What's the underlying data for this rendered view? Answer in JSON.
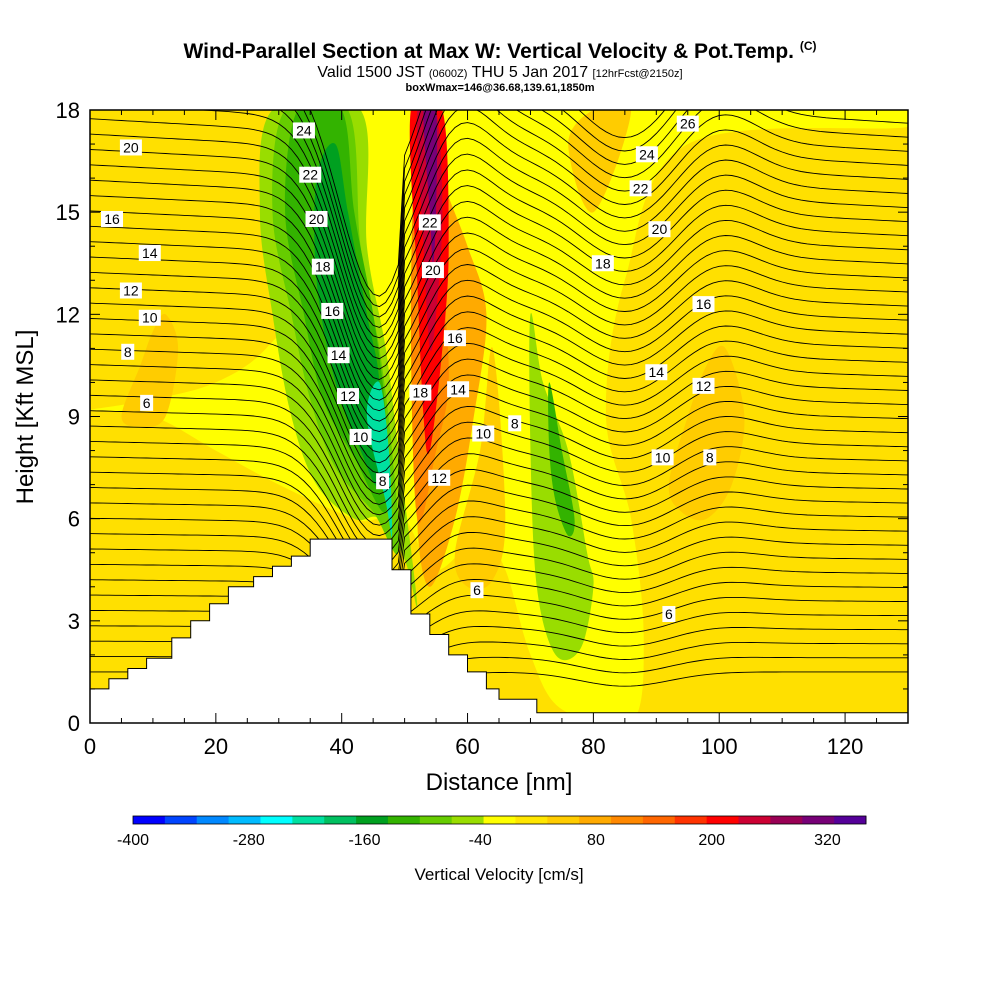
{
  "chart_data": {
    "type": "cross-section contour",
    "title": "Wind-Parallel Section at Max W: Vertical Velocity & Pot.Temp.",
    "title_mark": "(C)",
    "subtitle_prefix": "Valid 1500 JST",
    "subtitle_utc": "(0600Z)",
    "subtitle_date": "THU 5 Jan 2017",
    "subtitle_fcst": "[12hrFcst@2150z]",
    "subtitle2": "boxWmax=146@36.68,139.61,1850m",
    "xlabel": "Distance [nm]",
    "ylabel": "Height [Kft MSL]",
    "xlim": [
      0,
      130
    ],
    "ylim": [
      0,
      18
    ],
    "xticks": [
      0,
      20,
      40,
      60,
      80,
      100,
      120
    ],
    "yticks": [
      0,
      3,
      6,
      9,
      12,
      15,
      18
    ],
    "colorbar": {
      "title": "Vertical Velocity [cm/s]",
      "range": [
        -400,
        360
      ],
      "step": 40,
      "tick_values": [
        -400,
        -280,
        -160,
        -40,
        80,
        200,
        320
      ],
      "tick_labels": [
        "-400",
        "-280",
        "-160",
        "-40",
        "80",
        "200",
        "320"
      ],
      "colors": [
        "#0000ff",
        "#0044ff",
        "#0088ff",
        "#00bbff",
        "#00ffff",
        "#00e0a0",
        "#00c060",
        "#00a020",
        "#33b300",
        "#66cc00",
        "#99dd00",
        "#ffff00",
        "#ffe600",
        "#ffcc00",
        "#ffaa00",
        "#ff8800",
        "#ff6600",
        "#ff3300",
        "#ff0000",
        "#cc0033",
        "#990055",
        "#770077",
        "#550099"
      ]
    },
    "velocity_field": {
      "background": "#ffe000",
      "regions": [
        {
          "value": -20,
          "color": "#ffff00",
          "points": [
            [
              0,
              9.2
            ],
            [
              10,
              9.5
            ],
            [
              20,
              10
            ],
            [
              28,
              11
            ],
            [
              35,
              13
            ],
            [
              40,
              18
            ],
            [
              130,
              18
            ],
            [
              130,
              17.5
            ],
            [
              95,
              17
            ],
            [
              85,
              13
            ],
            [
              82,
              9
            ],
            [
              86,
              6
            ],
            [
              88,
              2.5
            ],
            [
              86,
              0
            ],
            [
              75,
              0.4
            ],
            [
              70,
              2
            ],
            [
              66,
              4.5
            ],
            [
              62,
              5.5
            ],
            [
              55,
              4.5
            ],
            [
              50,
              6
            ],
            [
              46,
              6
            ],
            [
              42,
              6
            ],
            [
              30,
              7
            ],
            [
              20,
              8
            ],
            [
              10,
              9
            ],
            [
              0,
              9.2
            ]
          ]
        },
        {
          "value": 60,
          "color": "#ffcc00",
          "points": [
            [
              5,
              9
            ],
            [
              8,
              10.5
            ],
            [
              10,
              11.5
            ],
            [
              12,
              12
            ],
            [
              14,
              11
            ],
            [
              12,
              9
            ],
            [
              8,
              8.7
            ]
          ]
        },
        {
          "value": 60,
          "color": "#ffcc00",
          "points": [
            [
              92,
              7
            ],
            [
              95,
              9
            ],
            [
              98,
              10.5
            ],
            [
              101,
              11
            ],
            [
              104,
              9
            ],
            [
              102,
              7
            ],
            [
              98,
              6
            ],
            [
              94,
              6.2
            ]
          ]
        },
        {
          "value": 60,
          "color": "#ffcc00",
          "points": [
            [
              76,
              17
            ],
            [
              80,
              15
            ],
            [
              86,
              18
            ],
            [
              80,
              18
            ]
          ]
        },
        {
          "value": 60,
          "color": "#ffcc00",
          "points": [
            [
              58,
              5
            ],
            [
              62,
              8
            ],
            [
              64,
              11
            ],
            [
              66,
              6
            ],
            [
              64,
              4.2
            ],
            [
              60,
              4
            ]
          ]
        },
        {
          "value": -60,
          "color": "#99dd00",
          "points": [
            [
              29,
              18
            ],
            [
              27,
              15
            ],
            [
              29,
              12
            ],
            [
              32,
              9
            ],
            [
              36,
              7
            ],
            [
              42,
              6
            ],
            [
              46,
              6
            ],
            [
              50,
              4.8
            ],
            [
              52,
              3.5
            ],
            [
              49,
              8
            ],
            [
              47,
              11
            ],
            [
              44,
              14
            ],
            [
              43,
              18
            ]
          ]
        },
        {
          "value": -100,
          "color": "#66cc00",
          "points": [
            [
              31,
              18
            ],
            [
              29,
              15
            ],
            [
              32,
              12
            ],
            [
              35,
              9.5
            ],
            [
              39,
              7.5
            ],
            [
              45,
              6.2
            ],
            [
              49,
              5
            ],
            [
              48,
              8
            ],
            [
              46,
              11
            ],
            [
              43,
              14
            ],
            [
              41,
              18
            ]
          ]
        },
        {
          "value": -140,
          "color": "#33b300",
          "points": [
            [
              33,
              18
            ],
            [
              31,
              15
            ],
            [
              34,
              12
            ],
            [
              37,
              9.5
            ],
            [
              42,
              7.8
            ],
            [
              47,
              6.2
            ],
            [
              47,
              9
            ],
            [
              45,
              12
            ],
            [
              42,
              15
            ],
            [
              40,
              18
            ]
          ]
        },
        {
          "value": -180,
          "color": "#00a020",
          "points": [
            [
              36,
              16
            ],
            [
              36,
              13
            ],
            [
              39,
              10
            ],
            [
              43,
              8
            ],
            [
              46,
              7
            ],
            [
              46,
              10
            ],
            [
              44,
              12
            ],
            [
              41,
              15
            ],
            [
              39,
              17
            ]
          ]
        },
        {
          "value": -260,
          "color": "#00e0a0",
          "points": [
            [
              44,
              9
            ],
            [
              47,
              6.5
            ],
            [
              48,
              5.5
            ],
            [
              47.5,
              8
            ],
            [
              46,
              10
            ]
          ]
        },
        {
          "value": -60,
          "color": "#99dd00",
          "points": [
            [
              70,
              12
            ],
            [
              72,
              10
            ],
            [
              76,
              8
            ],
            [
              79,
              5
            ],
            [
              80,
              4
            ],
            [
              78,
              2.2
            ],
            [
              74,
              2
            ],
            [
              71,
              4
            ],
            [
              70,
              8
            ]
          ]
        },
        {
          "value": -140,
          "color": "#33b300",
          "points": [
            [
              73,
              10
            ],
            [
              75,
              8
            ],
            [
              77,
              6
            ],
            [
              76,
              5.5
            ],
            [
              74,
              6.5
            ],
            [
              73,
              8
            ]
          ]
        },
        {
          "value": 100,
          "color": "#ffaa00",
          "points": [
            [
              54,
              4
            ],
            [
              58,
              6
            ],
            [
              61,
              9
            ],
            [
              63,
              12
            ],
            [
              60,
              14
            ],
            [
              56,
              16
            ],
            [
              54,
              18
            ],
            [
              52,
              18
            ],
            [
              53,
              10
            ],
            [
              52,
              6
            ]
          ]
        },
        {
          "value": 140,
          "color": "#ff8800",
          "points": [
            [
              52,
              6
            ],
            [
              55,
              8
            ],
            [
              57,
              10
            ],
            [
              56,
              13
            ],
            [
              54,
              16
            ],
            [
              52,
              18
            ],
            [
              51,
              12
            ]
          ]
        },
        {
          "value": 200,
          "color": "#ff0000",
          "points": [
            [
              51,
              18
            ],
            [
              52,
              13
            ],
            [
              53,
              9
            ],
            [
              54,
              8
            ],
            [
              56,
              11
            ],
            [
              57,
              14
            ],
            [
              56,
              18
            ]
          ]
        },
        {
          "value": 260,
          "color": "#cc0033",
          "points": [
            [
              52,
              18
            ],
            [
              53,
              14
            ],
            [
              54,
              11
            ],
            [
              55,
              12
            ],
            [
              56,
              15
            ],
            [
              55,
              18
            ]
          ]
        },
        {
          "value": 320,
          "color": "#770077",
          "points": [
            [
              53,
              18
            ],
            [
              54,
              15
            ],
            [
              54.5,
              13.5
            ],
            [
              55,
              15
            ],
            [
              55,
              18
            ]
          ]
        }
      ]
    },
    "potential_temperature_labels": [
      {
        "value": "6",
        "x": 9,
        "y": 9.4
      },
      {
        "value": "8",
        "x": 6,
        "y": 10.9
      },
      {
        "value": "10",
        "x": 9.5,
        "y": 11.9
      },
      {
        "value": "12",
        "x": 6.5,
        "y": 12.7
      },
      {
        "value": "14",
        "x": 9.5,
        "y": 13.8
      },
      {
        "value": "16",
        "x": 3.5,
        "y": 14.8
      },
      {
        "value": "20",
        "x": 6.5,
        "y": 16.9
      },
      {
        "value": "24",
        "x": 34,
        "y": 17.4
      },
      {
        "value": "22",
        "x": 35,
        "y": 16.1
      },
      {
        "value": "20",
        "x": 36,
        "y": 14.8
      },
      {
        "value": "18",
        "x": 37,
        "y": 13.4
      },
      {
        "value": "16",
        "x": 38.5,
        "y": 12.1
      },
      {
        "value": "14",
        "x": 39.5,
        "y": 10.8
      },
      {
        "value": "12",
        "x": 41,
        "y": 9.6
      },
      {
        "value": "10",
        "x": 43,
        "y": 8.4
      },
      {
        "value": "8",
        "x": 46.5,
        "y": 7.1
      },
      {
        "value": "22",
        "x": 54,
        "y": 14.7
      },
      {
        "value": "20",
        "x": 54.5,
        "y": 13.3
      },
      {
        "value": "18",
        "x": 52.5,
        "y": 9.7
      },
      {
        "value": "16",
        "x": 58,
        "y": 11.3
      },
      {
        "value": "14",
        "x": 58.5,
        "y": 9.8
      },
      {
        "value": "12",
        "x": 55.5,
        "y": 7.2
      },
      {
        "value": "10",
        "x": 62.5,
        "y": 8.5
      },
      {
        "value": "8",
        "x": 67.5,
        "y": 8.8
      },
      {
        "value": "6",
        "x": 61.5,
        "y": 3.9
      },
      {
        "value": "26",
        "x": 95,
        "y": 17.6
      },
      {
        "value": "24",
        "x": 88.5,
        "y": 16.7
      },
      {
        "value": "22",
        "x": 87.5,
        "y": 15.7
      },
      {
        "value": "20",
        "x": 90.5,
        "y": 14.5
      },
      {
        "value": "18",
        "x": 81.5,
        "y": 13.5
      },
      {
        "value": "16",
        "x": 97.5,
        "y": 12.3
      },
      {
        "value": "14",
        "x": 90,
        "y": 10.3
      },
      {
        "value": "12",
        "x": 97.5,
        "y": 9.9
      },
      {
        "value": "10",
        "x": 91,
        "y": 7.8
      },
      {
        "value": "8",
        "x": 98.5,
        "y": 7.8
      },
      {
        "value": "6",
        "x": 92,
        "y": 3.2
      }
    ],
    "terrain": [
      [
        0,
        0
      ],
      [
        0,
        1
      ],
      [
        3,
        1
      ],
      [
        3,
        1.3
      ],
      [
        6,
        1.3
      ],
      [
        6,
        1.6
      ],
      [
        9,
        1.6
      ],
      [
        9,
        1.9
      ],
      [
        13,
        1.9
      ],
      [
        13,
        2.5
      ],
      [
        16,
        2.5
      ],
      [
        16,
        3
      ],
      [
        19,
        3
      ],
      [
        19,
        3.5
      ],
      [
        22,
        3.5
      ],
      [
        22,
        4
      ],
      [
        26,
        4
      ],
      [
        26,
        4.3
      ],
      [
        29,
        4.3
      ],
      [
        29,
        4.6
      ],
      [
        32,
        4.6
      ],
      [
        32,
        4.9
      ],
      [
        35,
        4.9
      ],
      [
        35,
        5.4
      ],
      [
        48,
        5.4
      ],
      [
        48,
        4.5
      ],
      [
        51,
        4.5
      ],
      [
        51,
        3.2
      ],
      [
        54,
        3.2
      ],
      [
        54,
        2.6
      ],
      [
        57,
        2.6
      ],
      [
        57,
        2
      ],
      [
        60,
        2
      ],
      [
        60,
        1.5
      ],
      [
        63,
        1.5
      ],
      [
        63,
        1
      ],
      [
        65,
        1
      ],
      [
        65,
        0.7
      ],
      [
        71,
        0.7
      ],
      [
        71,
        0.3
      ],
      [
        130,
        0.3
      ],
      [
        130,
        0
      ]
    ]
  }
}
